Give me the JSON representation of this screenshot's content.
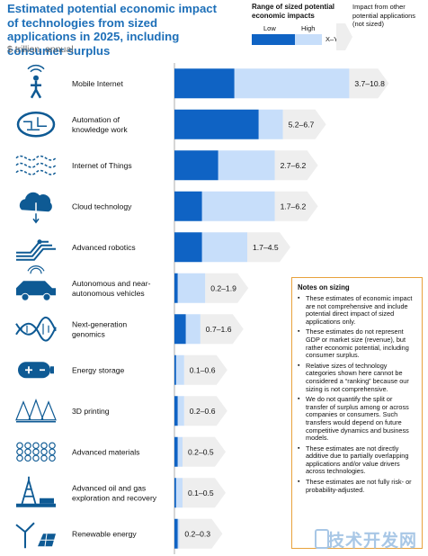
{
  "title": "Estimated potential economic impact of technologies from sized applications in 2025, including consumer surplus",
  "subtitle": "$ trillion, annual",
  "legend": {
    "title": "Range of sized potential economic impacts",
    "low_label": "Low",
    "high_label": "High",
    "range_label": "X–Y",
    "other_label": "Impact from other potential applications (not sized)",
    "colors": {
      "low": "#0f63c4",
      "high": "#c7defa",
      "other": "#eeeeee"
    }
  },
  "chart_data": {
    "type": "bar",
    "orientation": "horizontal",
    "stacked": true,
    "title": "Estimated potential economic impact of technologies from sized applications in 2025, including consumer surplus",
    "xlabel": "$ trillion, annual",
    "xlim": [
      0,
      11
    ],
    "categories": [
      "Mobile Internet",
      "Automation of knowledge work",
      "Internet of Things",
      "Cloud technology",
      "Advanced robotics",
      "Autonomous and near-autonomous vehicles",
      "Next-generation genomics",
      "Energy storage",
      "3D printing",
      "Advanced materials",
      "Advanced oil and gas exploration and recovery",
      "Renewable energy"
    ],
    "low": [
      3.7,
      5.2,
      2.7,
      1.7,
      1.7,
      0.2,
      0.7,
      0.1,
      0.2,
      0.2,
      0.1,
      0.2
    ],
    "high": [
      10.8,
      6.7,
      6.2,
      6.2,
      4.5,
      1.9,
      1.6,
      0.6,
      0.6,
      0.5,
      0.5,
      0.3
    ],
    "range_labels": [
      "3.7–10.8",
      "5.2–6.7",
      "2.7–6.2",
      "1.7–6.2",
      "1.7–4.5",
      "0.2–1.9",
      "0.7–1.6",
      "0.1–0.6",
      "0.2–0.6",
      "0.2–0.5",
      "0.1–0.5",
      "0.2–0.3"
    ],
    "label_lines": [
      [
        "Mobile Internet"
      ],
      [
        "Automation of",
        "knowledge work"
      ],
      [
        "Internet of Things"
      ],
      [
        "Cloud technology"
      ],
      [
        "Advanced robotics"
      ],
      [
        "Autonomous and near-",
        "autonomous vehicles"
      ],
      [
        "Next-generation",
        "genomics"
      ],
      [
        "Energy storage"
      ],
      [
        "3D printing"
      ],
      [
        "Advanced materials"
      ],
      [
        "Advanced oil and gas",
        "exploration and recovery"
      ],
      [
        "Renewable energy"
      ]
    ],
    "icons": [
      "mobile-internet-icon",
      "brain-icon",
      "internet-of-things-icon",
      "cloud-icon",
      "robotic-arm-icon",
      "vehicle-icon",
      "dna-icon",
      "battery-icon",
      "3d-printing-icon",
      "materials-lattice-icon",
      "oil-rig-icon",
      "wind-solar-icon"
    ],
    "grid": false
  },
  "notes": {
    "title": "Notes on sizing",
    "items": [
      "These estimates of economic impact are not comprehensive and include potential direct impact of sized applications only.",
      "These estimates do not represent GDP or market size (revenue), but rather economic potential, including consumer surplus.",
      "Relative sizes of technology categories shown here cannot be considered a “ranking” because our sizing is not comprehensive.",
      "We do not quantify the split or transfer of surplus among or across companies or consumers. Such transfers would depend on future competitive dynamics and business models.",
      "These estimates are not directly additive due to partially overlapping applications and/or value drivers across technologies.",
      "These estimates are not fully risk- or probability-adjusted."
    ]
  },
  "watermark": "技术开发网"
}
